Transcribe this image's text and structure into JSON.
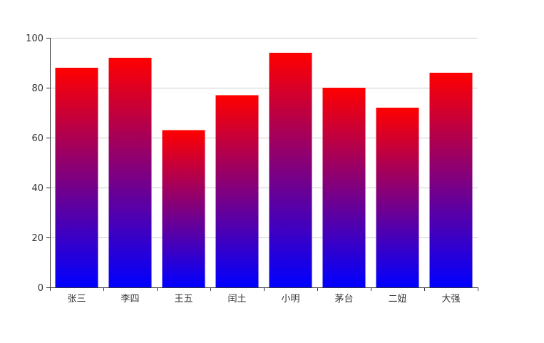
{
  "chart_data": {
    "type": "bar",
    "categories": [
      "张三",
      "李四",
      "王五",
      "闰土",
      "小明",
      "茅台",
      "二妞",
      "大强"
    ],
    "values": [
      88,
      92,
      63,
      77,
      94,
      80,
      72,
      86
    ],
    "ylim": [
      0,
      100
    ],
    "y_ticks": [
      0,
      20,
      40,
      60,
      80,
      100
    ],
    "grid": true,
    "legend": "none",
    "colors": {
      "bar_top": "#ff0000",
      "bar_bottom": "#0000ff",
      "grid": "#cccccc",
      "axis": "#333333",
      "text": "#333333"
    }
  }
}
